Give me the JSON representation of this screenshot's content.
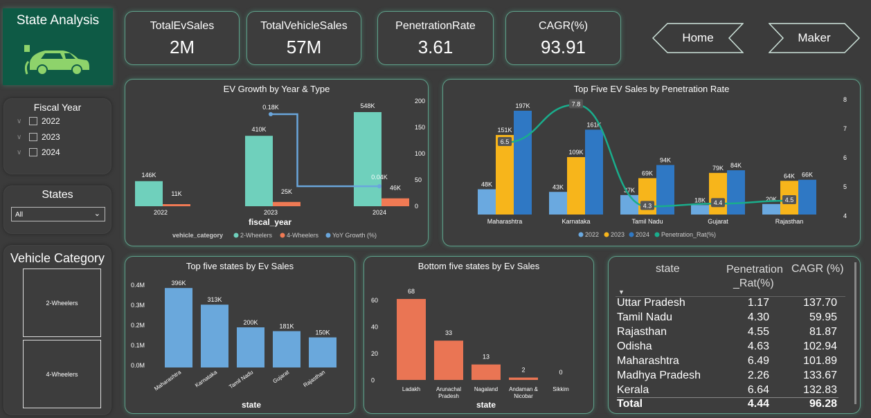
{
  "page_title": "State Analysis",
  "kpis": [
    {
      "label": "TotalEvSales",
      "value": "2M"
    },
    {
      "label": "TotalVehicleSales",
      "value": "57M"
    },
    {
      "label": "PenetrationRate",
      "value": "3.61"
    },
    {
      "label": "CAGR(%)",
      "value": "93.91"
    }
  ],
  "nav": {
    "home": "Home",
    "maker": "Maker"
  },
  "filters": {
    "fiscal_year": {
      "title": "Fiscal Year",
      "items": [
        "2022",
        "2023",
        "2024"
      ]
    },
    "states": {
      "title": "States",
      "selected": "All"
    },
    "vehicle_category": {
      "title": "Vehicle Category",
      "items": [
        "2-Wheelers",
        "4-Wheelers"
      ]
    }
  },
  "colors": {
    "accent": "#5fa08a",
    "teal_bar": "#6fd0bc",
    "orange_bar": "#f07a54",
    "yoy_line": "#6aa6dc",
    "y2022": "#6aa9e0",
    "y2023": "#f7b51b",
    "y2024": "#2f78c4",
    "pen_line": "#1aad8c",
    "state_bar": "#6aa8dc",
    "bottom_bar": "#ea7554"
  },
  "ev_growth": {
    "title": "EV Growth by Year & Type",
    "xlabel": "fiscal_year",
    "legend_title": "vehicle_category",
    "categories": [
      "2022",
      "2023",
      "2024"
    ],
    "series": [
      {
        "name": "2-Wheelers",
        "values": [
          146,
          410,
          548
        ],
        "labels": [
          "146K",
          "410K",
          "548K"
        ]
      },
      {
        "name": "4-Wheelers",
        "values": [
          11,
          25,
          46
        ],
        "labels": [
          "11K",
          "25K",
          "46K"
        ]
      },
      {
        "name": "YoY Growth (%)",
        "values": [
          null,
          175,
          38
        ],
        "labels": [
          "",
          "0.18K",
          "0.04K"
        ]
      }
    ],
    "y2_ticks": [
      "200",
      "150",
      "100",
      "50",
      "0"
    ]
  },
  "penetration": {
    "title": "Top Five EV Sales by Penetration Rate",
    "categories": [
      "Maharashtra",
      "Karnataka",
      "Tamil Nadu",
      "Gujarat",
      "Rajasthan"
    ],
    "series": [
      {
        "name": "2022",
        "values": [
          48,
          43,
          37,
          18,
          20
        ],
        "labels": [
          "48K",
          "43K",
          "37K",
          "18K",
          "20K"
        ]
      },
      {
        "name": "2023",
        "values": [
          151,
          109,
          69,
          79,
          64
        ],
        "labels": [
          "151K",
          "109K",
          "69K",
          "79K",
          "64K"
        ]
      },
      {
        "name": "2024",
        "values": [
          197,
          161,
          94,
          84,
          66
        ],
        "labels": [
          "197K",
          "161K",
          "94K",
          "84K",
          "66K"
        ]
      },
      {
        "name": "Penetration_Rat(%)",
        "values": [
          6.5,
          7.8,
          4.3,
          4.4,
          4.5
        ],
        "labels": [
          "6.5",
          "7.8",
          "4.3",
          "4.4",
          "4.5"
        ]
      }
    ],
    "y2_ticks": [
      "8",
      "7",
      "6",
      "5",
      "4"
    ]
  },
  "top5": {
    "title": "Top five states by Ev Sales",
    "xlabel": "state",
    "categories": [
      "Maharashtra",
      "Karnataka",
      "Tamil Nadu",
      "Gujarat",
      "Rajasthan"
    ],
    "values": [
      396,
      313,
      200,
      181,
      150
    ],
    "labels": [
      "396K",
      "313K",
      "200K",
      "181K",
      "150K"
    ],
    "y_ticks": [
      "0.4M",
      "0.3M",
      "0.2M",
      "0.1M",
      "0.0M"
    ]
  },
  "bottom5": {
    "title": "Bottom five states by Ev Sales",
    "xlabel": "state",
    "categories": [
      [
        "Ladakh"
      ],
      [
        "Arunachal",
        "Pradesh"
      ],
      [
        "Nagaland"
      ],
      [
        "Andaman &",
        "Nicobar"
      ],
      [
        "Sikkim"
      ]
    ],
    "values": [
      68,
      33,
      13,
      2,
      0
    ],
    "labels": [
      "68",
      "33",
      "13",
      "2",
      "0"
    ],
    "y_ticks": [
      "60",
      "40",
      "20",
      "0"
    ]
  },
  "table": {
    "headers": {
      "state": "state",
      "pen1": "Penetration",
      "pen2": "_Rat(%)",
      "cagr": "CAGR (%)"
    },
    "rows": [
      {
        "state": "Uttar Pradesh",
        "pen": "1.17",
        "cagr": "137.70"
      },
      {
        "state": "Tamil Nadu",
        "pen": "4.30",
        "cagr": "59.95"
      },
      {
        "state": "Rajasthan",
        "pen": "4.55",
        "cagr": "81.87"
      },
      {
        "state": "Odisha",
        "pen": "4.63",
        "cagr": "102.94"
      },
      {
        "state": "Maharashtra",
        "pen": "6.49",
        "cagr": "101.89"
      },
      {
        "state": "Madhya Pradesh",
        "pen": "2.26",
        "cagr": "133.67"
      },
      {
        "state": "Kerala",
        "pen": "6.64",
        "cagr": "132.83"
      }
    ],
    "total": {
      "label": "Total",
      "pen": "4.44",
      "cagr": "96.28"
    }
  },
  "chart_data": [
    {
      "type": "bar",
      "title": "EV Growth by Year & Type",
      "xlabel": "fiscal_year",
      "categories": [
        "2022",
        "2023",
        "2024"
      ],
      "series": [
        {
          "name": "2-Wheelers",
          "values": [
            146000,
            410000,
            548000
          ]
        },
        {
          "name": "4-Wheelers",
          "values": [
            11000,
            25000,
            46000
          ]
        },
        {
          "name": "YoY Growth (%)",
          "values": [
            null,
            180,
            40
          ]
        }
      ]
    },
    {
      "type": "bar",
      "title": "Top Five EV Sales by Penetration Rate",
      "categories": [
        "Maharashtra",
        "Karnataka",
        "Tamil Nadu",
        "Gujarat",
        "Rajasthan"
      ],
      "series": [
        {
          "name": "2022",
          "values": [
            48000,
            43000,
            37000,
            18000,
            20000
          ]
        },
        {
          "name": "2023",
          "values": [
            151000,
            109000,
            69000,
            79000,
            64000
          ]
        },
        {
          "name": "2024",
          "values": [
            197000,
            161000,
            94000,
            84000,
            66000
          ]
        },
        {
          "name": "Penetration_Rat(%)",
          "values": [
            6.5,
            7.8,
            4.3,
            4.4,
            4.5
          ]
        }
      ]
    },
    {
      "type": "bar",
      "title": "Top five states by Ev Sales",
      "xlabel": "state",
      "categories": [
        "Maharashtra",
        "Karnataka",
        "Tamil Nadu",
        "Gujarat",
        "Rajasthan"
      ],
      "values": [
        396000,
        313000,
        200000,
        181000,
        150000
      ]
    },
    {
      "type": "bar",
      "title": "Bottom five states by Ev Sales",
      "xlabel": "state",
      "categories": [
        "Ladakh",
        "Arunachal Pradesh",
        "Nagaland",
        "Andaman & Nicobar",
        "Sikkim"
      ],
      "values": [
        68,
        33,
        13,
        2,
        0
      ]
    }
  ]
}
